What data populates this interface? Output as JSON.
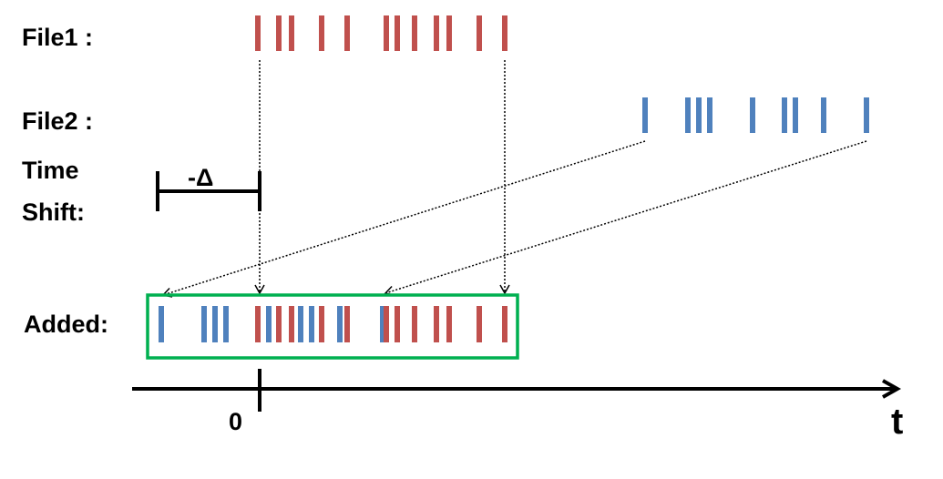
{
  "labels": {
    "file1": "File1 :",
    "file2": "File2 :",
    "time_shift_line1": "Time",
    "time_shift_line2": "Shift:",
    "delta": "-Δ",
    "added": "Added:",
    "origin": "0",
    "axis": "t"
  },
  "colors": {
    "file1": "#c0504d",
    "file2": "#4f81bd",
    "added_box": "#00b050",
    "axis": "#000000"
  }
}
